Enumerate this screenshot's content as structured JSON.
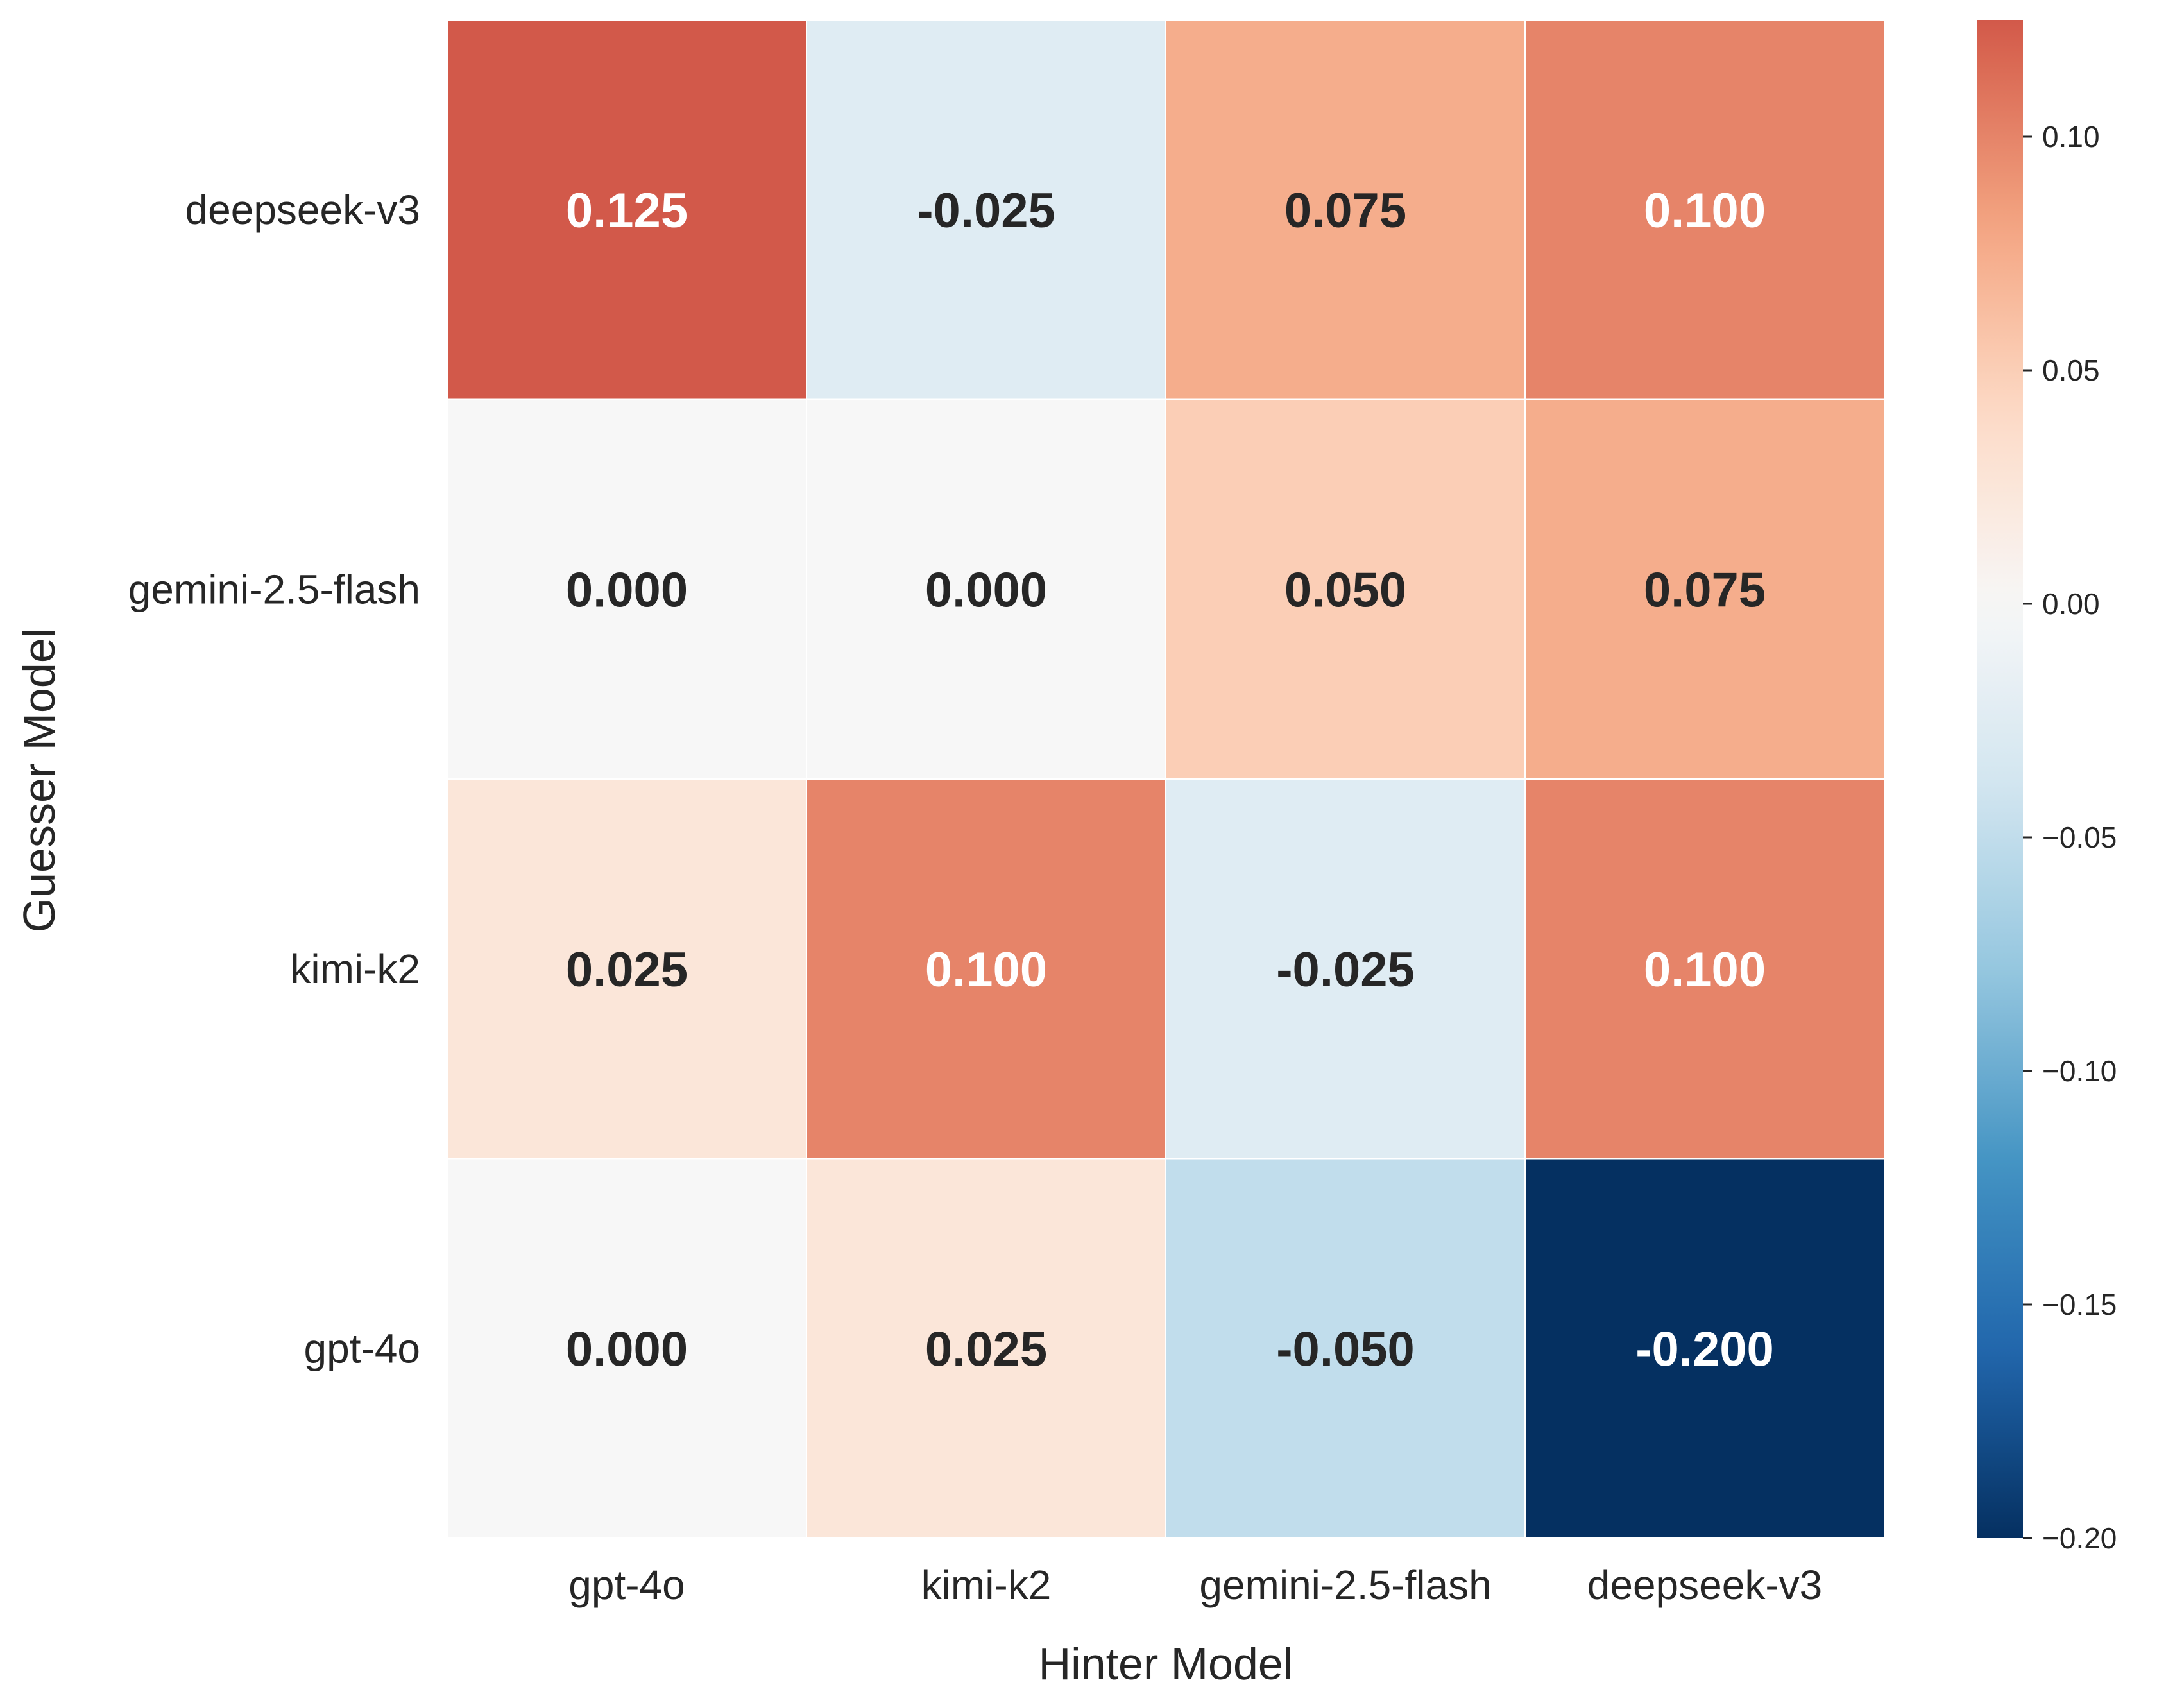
{
  "chart_data": {
    "type": "heatmap",
    "title": "",
    "xlabel": "Hinter Model",
    "ylabel": "Guesser Model",
    "x_categories": [
      "gpt-4o",
      "kimi-k2",
      "gemini-2.5-flash",
      "deepseek-v3"
    ],
    "y_categories": [
      "deepseek-v3",
      "gemini-2.5-flash",
      "kimi-k2",
      "gpt-4o"
    ],
    "values": [
      [
        0.125,
        -0.025,
        0.075,
        0.1
      ],
      [
        0.0,
        0.0,
        0.05,
        0.075
      ],
      [
        0.025,
        0.1,
        -0.025,
        0.1
      ],
      [
        0.0,
        0.025,
        -0.05,
        -0.2
      ]
    ],
    "value_labels": [
      [
        "0.125",
        "-0.025",
        "0.075",
        "0.100"
      ],
      [
        "0.000",
        "0.000",
        "0.050",
        "0.075"
      ],
      [
        "0.025",
        "0.100",
        "-0.025",
        "0.100"
      ],
      [
        "0.000",
        "0.025",
        "-0.050",
        "-0.200"
      ]
    ],
    "colormap": "RdBu_r",
    "vmin": -0.2,
    "vmax": 0.125,
    "colorbar": {
      "ticks": [
        0.1,
        0.05,
        0.0,
        -0.05,
        -0.1,
        -0.15,
        -0.2
      ],
      "tick_labels": [
        "0.10",
        "0.05",
        "0.00",
        "−0.05",
        "−0.10",
        "−0.15",
        "−0.20"
      ]
    }
  }
}
